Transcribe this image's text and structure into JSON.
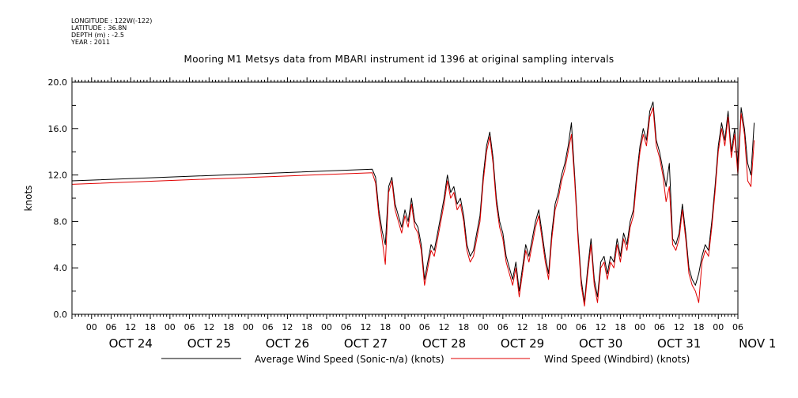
{
  "meta": {
    "longitude": "LONGITUDE : 122W(-122)",
    "latitude": "LATITUDE : 36.8N",
    "depth": "DEPTH (m) : -2.5",
    "year": "YEAR : 2011"
  },
  "chart_data": {
    "type": "line",
    "title": "Mooring M1 Metsys data from MBARI instrument id 1396 at original sampling intervals",
    "ylabel": "knots",
    "ylim": [
      0,
      20
    ],
    "yticks": [
      "0.0",
      "4.0",
      "8.0",
      "12.0",
      "16.0",
      "20.0"
    ],
    "xlim_hours": [
      -6,
      198
    ],
    "x_hour_labels": [
      "00",
      "06",
      "12",
      "18",
      "00",
      "06",
      "12",
      "18",
      "00",
      "06",
      "12",
      "18",
      "00",
      "06",
      "12",
      "18",
      "00",
      "06",
      "12",
      "18",
      "00",
      "06",
      "12",
      "18",
      "00",
      "06",
      "12",
      "18",
      "00",
      "06",
      "12",
      "18",
      "00",
      "06"
    ],
    "date_labels": [
      "OCT 24",
      "OCT 25",
      "OCT 26",
      "OCT 27",
      "OCT 28",
      "OCT 29",
      "OCT 30",
      "OCT 31",
      "NOV  1"
    ],
    "x_unit": "hours since OCT 24 00:00 (2011)",
    "series": [
      {
        "name": "Average Wind Speed (Sonic-n/a) (knots)",
        "color": "#000000",
        "points": [
          [
            -6,
            11.5
          ],
          [
            86,
            12.5
          ],
          [
            87,
            11.8
          ],
          [
            88,
            9.0
          ],
          [
            89,
            7.2
          ],
          [
            90,
            6.0
          ],
          [
            91,
            11.0
          ],
          [
            92,
            11.8
          ],
          [
            93,
            9.5
          ],
          [
            94,
            8.5
          ],
          [
            95,
            7.5
          ],
          [
            96,
            9.0
          ],
          [
            97,
            8.0
          ],
          [
            98,
            10.0
          ],
          [
            99,
            8.0
          ],
          [
            100,
            7.5
          ],
          [
            101,
            6.0
          ],
          [
            102,
            3.0
          ],
          [
            103,
            4.5
          ],
          [
            104,
            6.0
          ],
          [
            105,
            5.5
          ],
          [
            106,
            7.0
          ],
          [
            107,
            8.5
          ],
          [
            108,
            10.0
          ],
          [
            109,
            12.0
          ],
          [
            110,
            10.5
          ],
          [
            111,
            11.0
          ],
          [
            112,
            9.5
          ],
          [
            113,
            10.0
          ],
          [
            114,
            8.5
          ],
          [
            115,
            6.0
          ],
          [
            116,
            5.0
          ],
          [
            117,
            5.5
          ],
          [
            118,
            7.0
          ],
          [
            119,
            8.5
          ],
          [
            120,
            12.0
          ],
          [
            121,
            14.5
          ],
          [
            122,
            15.7
          ],
          [
            123,
            13.5
          ],
          [
            124,
            10.0
          ],
          [
            125,
            8.0
          ],
          [
            126,
            7.0
          ],
          [
            127,
            5.0
          ],
          [
            128,
            4.0
          ],
          [
            129,
            3.0
          ],
          [
            130,
            4.5
          ],
          [
            131,
            2.0
          ],
          [
            132,
            4.0
          ],
          [
            133,
            6.0
          ],
          [
            134,
            5.0
          ],
          [
            135,
            6.5
          ],
          [
            136,
            8.0
          ],
          [
            137,
            9.0
          ],
          [
            138,
            7.0
          ],
          [
            139,
            5.0
          ],
          [
            140,
            3.5
          ],
          [
            141,
            7.0
          ],
          [
            142,
            9.5
          ],
          [
            143,
            10.5
          ],
          [
            144,
            12.0
          ],
          [
            145,
            13.0
          ],
          [
            146,
            14.5
          ],
          [
            147,
            16.5
          ],
          [
            148,
            12.0
          ],
          [
            149,
            7.0
          ],
          [
            150,
            3.0
          ],
          [
            151,
            1.0
          ],
          [
            152,
            4.0
          ],
          [
            153,
            6.5
          ],
          [
            154,
            3.0
          ],
          [
            155,
            1.5
          ],
          [
            156,
            4.5
          ],
          [
            157,
            5.0
          ],
          [
            158,
            3.5
          ],
          [
            159,
            5.0
          ],
          [
            160,
            4.5
          ],
          [
            161,
            6.5
          ],
          [
            162,
            5.0
          ],
          [
            163,
            7.0
          ],
          [
            164,
            6.0
          ],
          [
            165,
            8.0
          ],
          [
            166,
            9.0
          ],
          [
            167,
            12.0
          ],
          [
            168,
            14.5
          ],
          [
            169,
            16.0
          ],
          [
            170,
            15.0
          ],
          [
            171,
            17.5
          ],
          [
            172,
            18.3
          ],
          [
            173,
            15.0
          ],
          [
            174,
            14.0
          ],
          [
            175,
            12.5
          ],
          [
            176,
            11.0
          ],
          [
            177,
            13.0
          ],
          [
            178,
            6.5
          ],
          [
            179,
            6.0
          ],
          [
            180,
            7.0
          ],
          [
            181,
            9.5
          ],
          [
            182,
            7.0
          ],
          [
            183,
            4.0
          ],
          [
            184,
            3.0
          ],
          [
            185,
            2.5
          ],
          [
            186,
            3.5
          ],
          [
            187,
            5.0
          ],
          [
            188,
            6.0
          ],
          [
            189,
            5.5
          ],
          [
            190,
            8.0
          ],
          [
            191,
            11.0
          ],
          [
            192,
            14.5
          ],
          [
            193,
            16.5
          ],
          [
            194,
            15.0
          ],
          [
            195,
            17.5
          ],
          [
            196,
            14.0
          ],
          [
            197,
            16.0
          ],
          [
            198,
            12.5
          ],
          [
            199,
            17.8
          ],
          [
            200,
            16.0
          ],
          [
            201,
            13.0
          ],
          [
            202,
            12.0
          ],
          [
            203,
            16.5
          ]
        ]
      },
      {
        "name": "Wind Speed (Windbird) (knots)",
        "color": "#e00000",
        "points": [
          [
            -6,
            11.2
          ],
          [
            86,
            12.2
          ],
          [
            87,
            11.3
          ],
          [
            88,
            8.5
          ],
          [
            89,
            6.5
          ],
          [
            90,
            4.3
          ],
          [
            91,
            10.5
          ],
          [
            92,
            11.5
          ],
          [
            93,
            9.0
          ],
          [
            94,
            8.0
          ],
          [
            95,
            7.0
          ],
          [
            96,
            8.5
          ],
          [
            97,
            7.5
          ],
          [
            98,
            9.5
          ],
          [
            99,
            7.5
          ],
          [
            100,
            7.0
          ],
          [
            101,
            5.5
          ],
          [
            102,
            2.5
          ],
          [
            103,
            4.0
          ],
          [
            104,
            5.5
          ],
          [
            105,
            5.0
          ],
          [
            106,
            6.5
          ],
          [
            107,
            8.0
          ],
          [
            108,
            9.5
          ],
          [
            109,
            11.5
          ],
          [
            110,
            10.0
          ],
          [
            111,
            10.5
          ],
          [
            112,
            9.0
          ],
          [
            113,
            9.5
          ],
          [
            114,
            8.0
          ],
          [
            115,
            5.5
          ],
          [
            116,
            4.5
          ],
          [
            117,
            5.0
          ],
          [
            118,
            6.5
          ],
          [
            119,
            8.0
          ],
          [
            120,
            11.5
          ],
          [
            121,
            14.0
          ],
          [
            122,
            15.3
          ],
          [
            123,
            13.0
          ],
          [
            124,
            9.5
          ],
          [
            125,
            7.5
          ],
          [
            126,
            6.5
          ],
          [
            127,
            4.5
          ],
          [
            128,
            3.5
          ],
          [
            129,
            2.5
          ],
          [
            130,
            4.0
          ],
          [
            131,
            1.5
          ],
          [
            132,
            3.5
          ],
          [
            133,
            5.5
          ],
          [
            134,
            4.5
          ],
          [
            135,
            6.0
          ],
          [
            136,
            7.5
          ],
          [
            137,
            8.5
          ],
          [
            138,
            6.5
          ],
          [
            139,
            4.5
          ],
          [
            140,
            3.0
          ],
          [
            141,
            6.5
          ],
          [
            142,
            9.0
          ],
          [
            143,
            10.0
          ],
          [
            144,
            11.5
          ],
          [
            145,
            12.5
          ],
          [
            146,
            14.0
          ],
          [
            147,
            15.5
          ],
          [
            148,
            11.5
          ],
          [
            149,
            6.5
          ],
          [
            150,
            2.5
          ],
          [
            151,
            0.7
          ],
          [
            152,
            3.5
          ],
          [
            153,
            6.0
          ],
          [
            154,
            2.5
          ],
          [
            155,
            1.0
          ],
          [
            156,
            4.0
          ],
          [
            157,
            4.5
          ],
          [
            158,
            3.0
          ],
          [
            159,
            4.5
          ],
          [
            160,
            4.0
          ],
          [
            161,
            6.0
          ],
          [
            162,
            4.5
          ],
          [
            163,
            6.5
          ],
          [
            164,
            5.5
          ],
          [
            165,
            7.5
          ],
          [
            166,
            8.5
          ],
          [
            167,
            11.5
          ],
          [
            168,
            14.0
          ],
          [
            169,
            15.5
          ],
          [
            170,
            14.5
          ],
          [
            171,
            17.0
          ],
          [
            172,
            17.8
          ],
          [
            173,
            14.5
          ],
          [
            174,
            13.5
          ],
          [
            175,
            12.0
          ],
          [
            176,
            9.7
          ],
          [
            177,
            11.0
          ],
          [
            178,
            6.0
          ],
          [
            179,
            5.5
          ],
          [
            180,
            6.5
          ],
          [
            181,
            9.0
          ],
          [
            182,
            6.5
          ],
          [
            183,
            3.5
          ],
          [
            184,
            2.5
          ],
          [
            185,
            2.0
          ],
          [
            186,
            1.0
          ],
          [
            187,
            4.5
          ],
          [
            188,
            5.5
          ],
          [
            189,
            5.0
          ],
          [
            190,
            7.5
          ],
          [
            191,
            10.5
          ],
          [
            192,
            14.0
          ],
          [
            193,
            16.0
          ],
          [
            194,
            14.5
          ],
          [
            195,
            17.0
          ],
          [
            196,
            13.5
          ],
          [
            197,
            15.5
          ],
          [
            198,
            12.0
          ],
          [
            199,
            17.3
          ],
          [
            200,
            15.5
          ],
          [
            201,
            11.5
          ],
          [
            202,
            11.0
          ],
          [
            203,
            15.0
          ]
        ]
      }
    ]
  }
}
